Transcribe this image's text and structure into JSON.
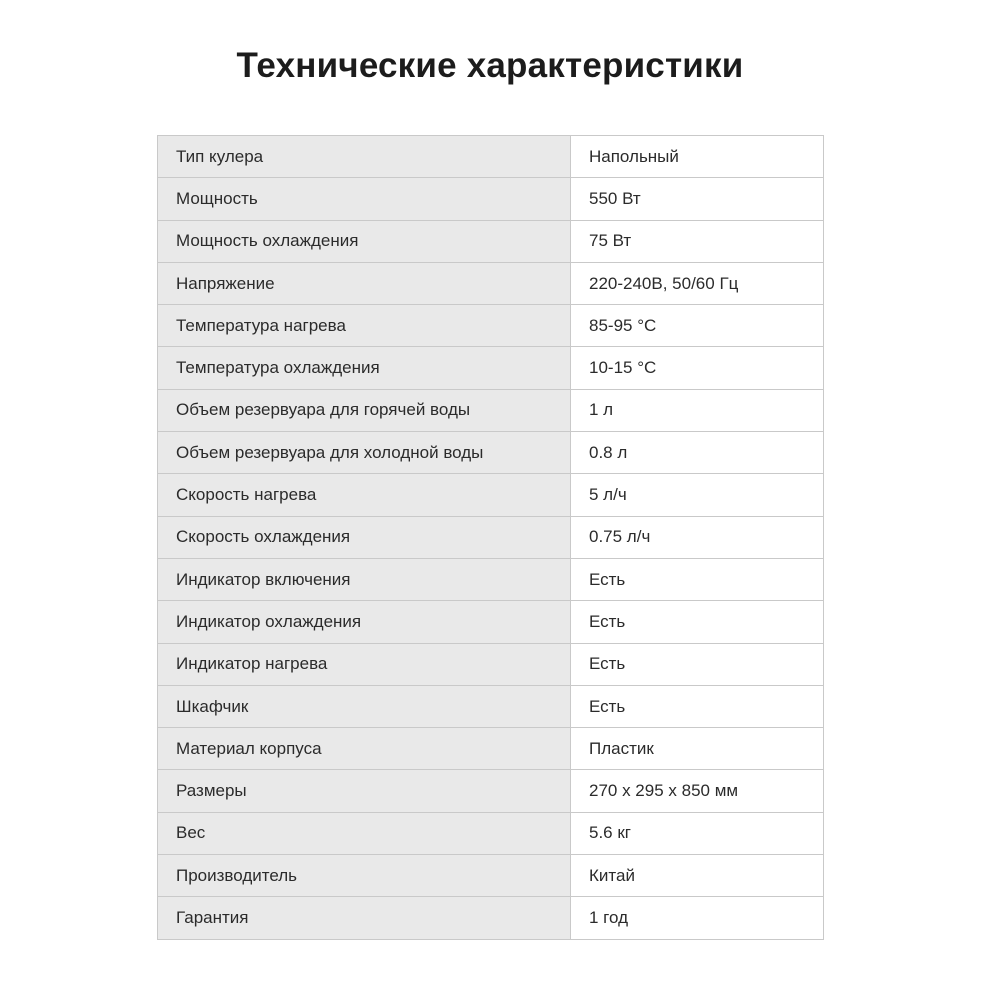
{
  "page": {
    "title": "Технические характеристики"
  },
  "table": {
    "rows": [
      {
        "label": "Тип кулера",
        "value": "Напольный"
      },
      {
        "label": "Мощность",
        "value": "550 Вт"
      },
      {
        "label": "Мощность охлаждения",
        "value": "75 Вт"
      },
      {
        "label": "Напряжение",
        "value": "220-240В, 50/60 Гц"
      },
      {
        "label": "Температура нагрева",
        "value": "85-95 °C"
      },
      {
        "label": "Температура охлаждения",
        "value": "10-15 °C"
      },
      {
        "label": "Объем резервуара для горячей воды",
        "value": "1 л"
      },
      {
        "label": "Объем резервуара для холодной воды",
        "value": "0.8 л"
      },
      {
        "label": "Скорость нагрева",
        "value": "5 л/ч"
      },
      {
        "label": "Скорость охлаждения",
        "value": "0.75 л/ч"
      },
      {
        "label": "Индикатор включения",
        "value": "Есть"
      },
      {
        "label": "Индикатор охлаждения",
        "value": "Есть"
      },
      {
        "label": "Индикатор нагрева",
        "value": "Есть"
      },
      {
        "label": "Шкафчик",
        "value": "Есть"
      },
      {
        "label": "Материал корпуса",
        "value": "Пластик"
      },
      {
        "label": "Размеры",
        "value": "270 x 295 x 850 мм"
      },
      {
        "label": "Вес",
        "value": "5.6 кг"
      },
      {
        "label": "Производитель",
        "value": "Китай"
      },
      {
        "label": "Гарантия",
        "value": "1 год"
      }
    ]
  },
  "colors": {
    "label_cell_bg": "#e9e9e9",
    "value_cell_bg": "#ffffff",
    "border": "#c9c9c9",
    "text": "#2b2b2b",
    "title_text": "#1c1c1c"
  }
}
